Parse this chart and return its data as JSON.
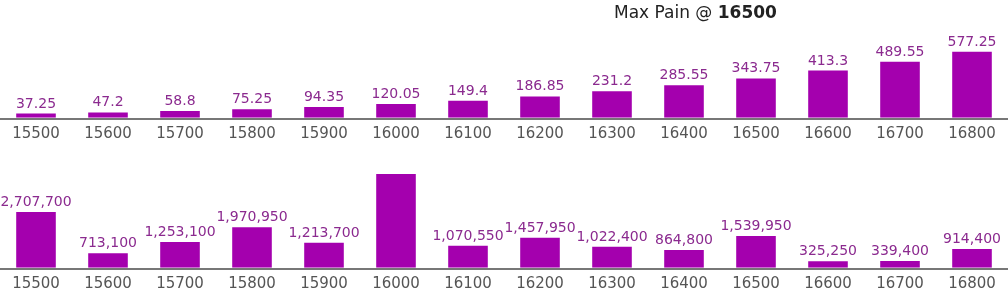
{
  "chart_data": [
    {
      "type": "bar",
      "title": "Max Pain @ 16500",
      "categories": [
        "15500",
        "15600",
        "15700",
        "15800",
        "15900",
        "16000",
        "16100",
        "16200",
        "16300",
        "16400",
        "16500",
        "16600",
        "16700",
        "16800"
      ],
      "values": [
        37.25,
        47.2,
        58.8,
        75.25,
        94.35,
        120.05,
        149.4,
        186.85,
        231.2,
        285.55,
        343.75,
        413.3,
        489.55,
        577.25
      ],
      "color": "#a400ae",
      "data_labels": true
    },
    {
      "type": "bar",
      "categories": [
        "15500",
        "15600",
        "15700",
        "15800",
        "15900",
        "16000",
        "16100",
        "16200",
        "16300",
        "16400",
        "16500",
        "16600",
        "16700",
        "16800"
      ],
      "values": [
        2707700,
        713100,
        1253100,
        1970950,
        1213700,
        4550000,
        1070550,
        1457950,
        1022400,
        864800,
        1539950,
        325250,
        339400,
        914400
      ],
      "value_labels": [
        "2,707,700",
        "713,100",
        "1,253,100",
        "1,970,950",
        "1,213,700",
        null,
        "1,070,550",
        "1,457,950",
        "1,022,400",
        "864,800",
        "1,539,950",
        "325,250",
        "339,400",
        "914,400"
      ],
      "color": "#a400ae"
    }
  ]
}
